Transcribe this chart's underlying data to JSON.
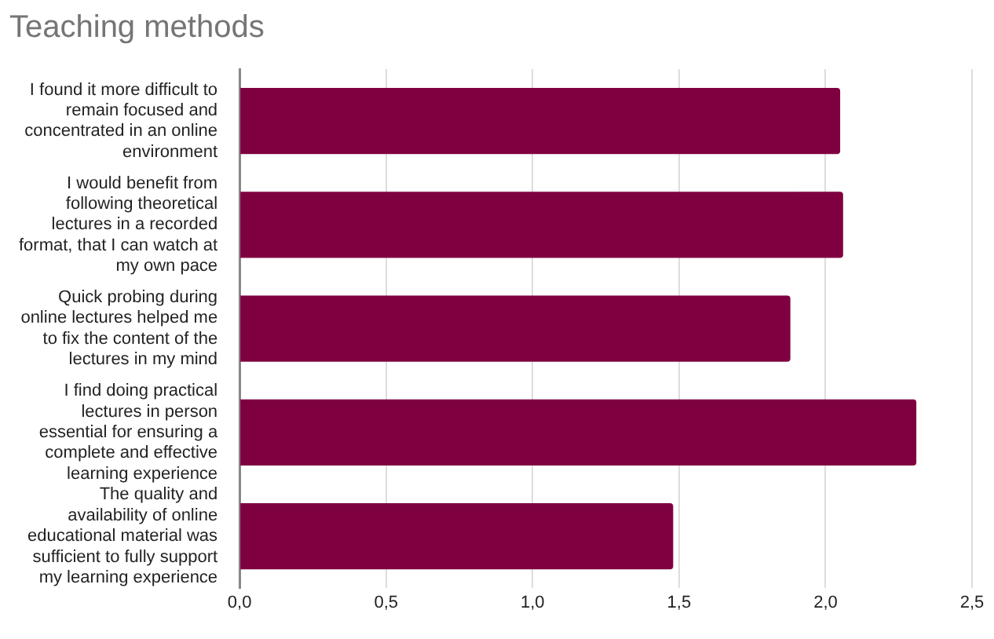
{
  "chart_data": {
    "type": "bar",
    "orientation": "horizontal",
    "title": "Teaching methods",
    "categories": [
      "I found it more difficult to remain focused and concentrated in an online environment",
      "I would benefit from following theoretical lectures in a recorded format, that I can watch at my own pace",
      "Quick probing during online lectures helped me to fix the content of the lectures in my mind",
      "I find doing practical lectures in person essential for ensuring a complete and effective learning experience",
      "The quality and availability of online educational material was sufficient to fully support my learning experience"
    ],
    "values": [
      2.05,
      2.06,
      1.88,
      2.31,
      1.48
    ],
    "color": "#7f0040",
    "xlim": [
      0,
      2.5
    ],
    "xticks": [
      {
        "value": 0,
        "label": "0,0"
      },
      {
        "value": 0.5,
        "label": "0,5"
      },
      {
        "value": 1,
        "label": "1,0"
      },
      {
        "value": 1.5,
        "label": "1,5"
      },
      {
        "value": 2,
        "label": "2,0"
      },
      {
        "value": 2.5,
        "label": "2,5"
      }
    ],
    "grid": "x",
    "legend": false
  }
}
